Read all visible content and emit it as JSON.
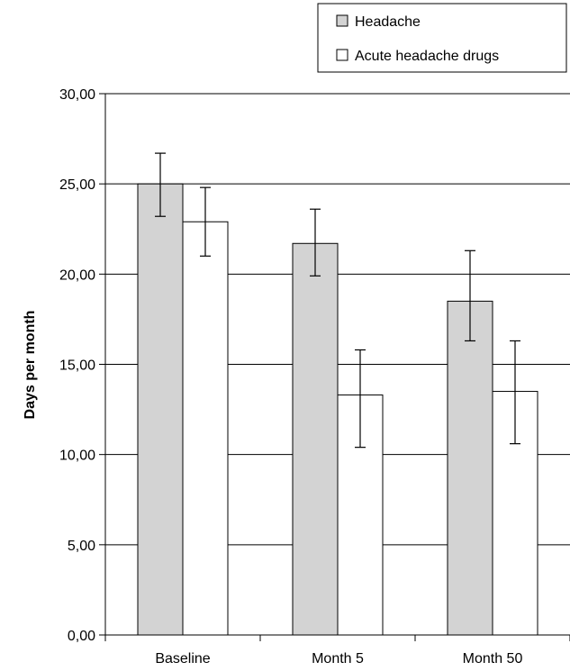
{
  "chart_data": {
    "type": "bar",
    "title": "",
    "xlabel": "",
    "ylabel": "Days per month",
    "ylim": [
      0,
      30
    ],
    "yticks": [
      "0,00",
      "5,00",
      "10,00",
      "15,00",
      "20,00",
      "25,00",
      "30,00"
    ],
    "categories": [
      "Baseline",
      "Month 5",
      "Month 50"
    ],
    "grid": true,
    "legend_position": "top-right",
    "series": [
      {
        "name": "Headache",
        "color": "#d3d3d3",
        "values": [
          25.0,
          21.7,
          18.5
        ],
        "error_low": [
          23.2,
          19.9,
          16.3
        ],
        "error_high": [
          26.7,
          23.6,
          21.3
        ]
      },
      {
        "name": "Acute headache drugs",
        "color": "#ffffff",
        "values": [
          22.9,
          13.3,
          13.5
        ],
        "error_low": [
          21.0,
          10.4,
          10.6
        ],
        "error_high": [
          24.8,
          15.8,
          16.3
        ]
      }
    ]
  }
}
